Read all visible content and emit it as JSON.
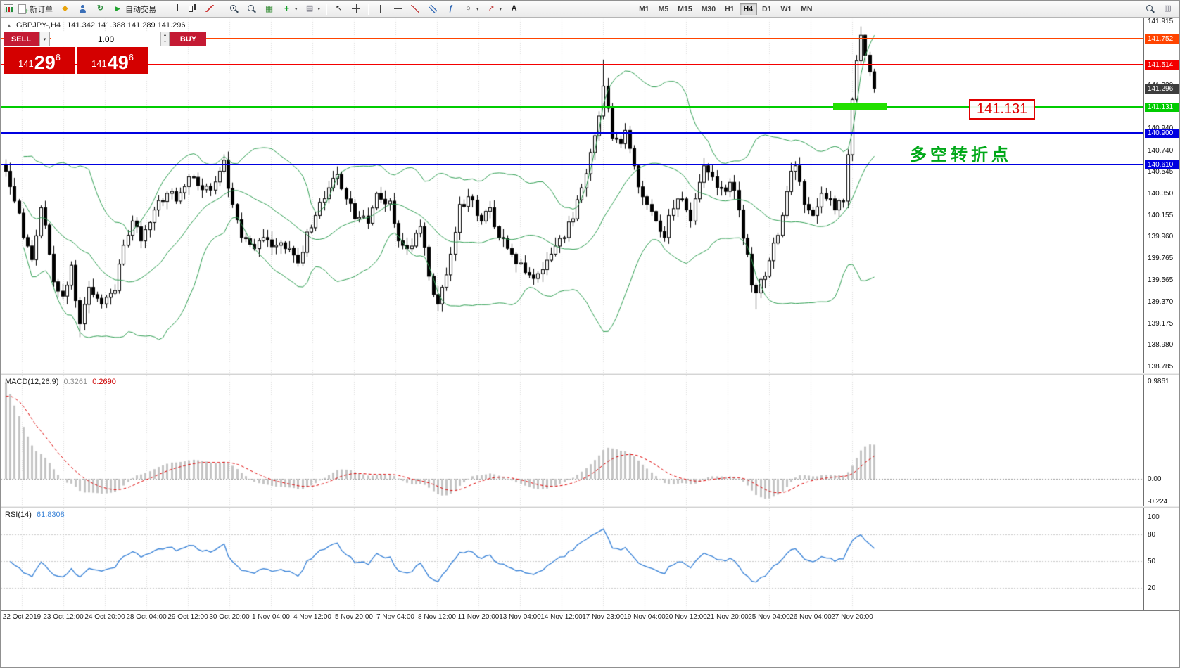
{
  "toolbar": {
    "new_order_label": "新订单",
    "autotrade_label": "自动交易",
    "timeframes": [
      "M1",
      "M5",
      "M15",
      "M30",
      "H1",
      "H4",
      "D1",
      "W1",
      "MN"
    ],
    "active_timeframe": "H4",
    "items": [
      {
        "t": "app",
        "name": "app-icon"
      },
      {
        "t": "btn",
        "name": "new-order-button",
        "icon": "neworder",
        "bind": "toolbar.new_order_label"
      },
      {
        "t": "btn",
        "name": "community-button",
        "icon": "diamond"
      },
      {
        "t": "btn",
        "name": "profile-button",
        "icon": "person"
      },
      {
        "t": "btn",
        "name": "refresh-button",
        "icon": "refresh"
      },
      {
        "t": "btn",
        "name": "autotrading-button",
        "icon": "play",
        "bind": "toolbar.autotrade_label"
      },
      {
        "t": "sep"
      },
      {
        "t": "btn",
        "name": "bar-chart-button",
        "icon": "ohlc"
      },
      {
        "t": "btn",
        "name": "candlestick-chart-button",
        "icon": "candles"
      },
      {
        "t": "btn",
        "name": "line-chart-button",
        "icon": "linechart"
      },
      {
        "t": "sep"
      },
      {
        "t": "btn",
        "name": "zoom-in-button",
        "icon": "zoomin"
      },
      {
        "t": "btn",
        "name": "zoom-out-button",
        "icon": "zoomout"
      },
      {
        "t": "btn",
        "name": "tile-windows-button",
        "icon": "grid"
      },
      {
        "t": "btn",
        "name": "indicators-button",
        "icon": "indicators",
        "dd": true
      },
      {
        "t": "btn",
        "name": "templates-button",
        "icon": "templates",
        "dd": true
      },
      {
        "t": "sep"
      },
      {
        "t": "btn",
        "name": "cursor-button",
        "icon": "cursor"
      },
      {
        "t": "btn",
        "name": "crosshair-button",
        "icon": "crosshair"
      },
      {
        "t": "sep"
      },
      {
        "t": "btn",
        "name": "vertical-line-button",
        "icon": "vlinetool"
      },
      {
        "t": "btn",
        "name": "horizontal-line-button",
        "icon": "hlinetool"
      },
      {
        "t": "btn",
        "name": "trendline-button",
        "icon": "trend"
      },
      {
        "t": "btn",
        "name": "channel-button",
        "icon": "channel"
      },
      {
        "t": "btn",
        "name": "fibonacci-button",
        "icon": "fibo"
      },
      {
        "t": "btn",
        "name": "shapes-button",
        "icon": "shapes",
        "dd": true
      },
      {
        "t": "btn",
        "name": "arrows-button",
        "icon": "arrows",
        "dd": true
      },
      {
        "t": "btn",
        "name": "text-button",
        "icon": "text"
      },
      {
        "t": "sep"
      },
      {
        "t": "tfgroup"
      },
      {
        "t": "flex"
      },
      {
        "t": "btn",
        "name": "search-button",
        "icon": "zoom"
      },
      {
        "t": "btn",
        "name": "quick-nav-button",
        "icon": "templates2"
      }
    ]
  },
  "chart": {
    "header_symbol": "GBPJPY-,H4",
    "header_ohlc": "141.342 141.388 141.289 141.296"
  },
  "trade_panel": {
    "sell_label": "SELL",
    "buy_label": "BUY",
    "volume": "1.00",
    "sell_price": {
      "prefix": "141",
      "big": "29",
      "sup": "6"
    },
    "buy_price": {
      "prefix": "141",
      "big": "49",
      "sup": "6"
    }
  },
  "hlines": [
    {
      "price": 141.752,
      "label": "141.752",
      "color": "#ff4400"
    },
    {
      "price": 141.514,
      "label": "141.514",
      "color": "#f40000"
    },
    {
      "price": 141.131,
      "label": "141.131",
      "color": "#00cc00"
    },
    {
      "price": 140.9,
      "label": "140.900",
      "color": "#0000e0"
    },
    {
      "price": 140.61,
      "label": "140.610",
      "color": "#0000e0"
    }
  ],
  "current_price": {
    "price": 141.296,
    "label": "141.296",
    "color": "#3d3d3d"
  },
  "annotations": {
    "highlight_price": "141.131",
    "turning_point": "多空转折点"
  },
  "price_axis_labels": [
    "141.915",
    "141.720",
    "141.525",
    "141.330",
    "141.135",
    "140.940",
    "140.740",
    "140.545",
    "140.350",
    "140.155",
    "139.960",
    "139.765",
    "139.565",
    "139.370",
    "139.175",
    "138.980",
    "138.785"
  ],
  "macd": {
    "name": "MACD(12,26,9)",
    "value_main": "0.3261",
    "value_signal": "0.2690",
    "axis_labels": [
      "0.9861",
      "0.00",
      "-0.224"
    ]
  },
  "rsi": {
    "name": "RSI(14)",
    "value": "61.8308",
    "axis_labels": [
      "100",
      "80",
      "50",
      "20"
    ],
    "levels": [
      80,
      50,
      20
    ]
  },
  "time_axis": [
    "22 Oct 2019",
    "23 Oct 12:00",
    "24 Oct 20:00",
    "28 Oct 04:00",
    "29 Oct 12:00",
    "30 Oct 20:00",
    "1 Nov 04:00",
    "4 Nov 12:00",
    "5 Nov 20:00",
    "7 Nov 04:00",
    "8 Nov 12:00",
    "11 Nov 20:00",
    "13 Nov 04:00",
    "14 Nov 12:00",
    "17 Nov 23:00",
    "19 Nov 04:00",
    "20 Nov 12:00",
    "21 Nov 20:00",
    "25 Nov 04:00",
    "26 Nov 04:00",
    "27 Nov 20:00"
  ],
  "colors": {
    "bollinger": "#2f9e52",
    "macd_signal": "#dd0000",
    "macd_histogram": "#c4c4c4",
    "rsi_line": "#3d85d8",
    "trade_button_red": "#c41a33",
    "trade_price_red": "#d40000",
    "annotation_red": "#e00000",
    "annotation_green": "#00a818",
    "highlight_green": "#22e000",
    "grid": "#dcdcdc"
  },
  "chart_data": {
    "type": "candlestick",
    "symbol": "GBPJPY-",
    "timeframe": "H4",
    "ohlc_current": {
      "open": 141.342,
      "high": 141.388,
      "low": 141.289,
      "close": 141.296
    },
    "y_axis": {
      "min": 138.785,
      "max": 141.915
    },
    "candles_count": 200,
    "indicators": {
      "bollinger": {
        "period": 20,
        "deviation": 2
      },
      "macd": {
        "fast": 12,
        "slow": 26,
        "signal": 9,
        "main": 0.3261,
        "signal_value": 0.269
      },
      "rsi": {
        "period": 14,
        "value": 61.8308
      }
    },
    "price_waypoints": [
      [
        0,
        140.55
      ],
      [
        2,
        140.28
      ],
      [
        4,
        139.95
      ],
      [
        6,
        139.75
      ],
      [
        8,
        140.22
      ],
      [
        10,
        139.8
      ],
      [
        11,
        139.55
      ],
      [
        13,
        139.42
      ],
      [
        15,
        139.7
      ],
      [
        16,
        139.38
      ],
      [
        17,
        139.17
      ],
      [
        19,
        139.5
      ],
      [
        22,
        139.35
      ],
      [
        25,
        139.47
      ],
      [
        27,
        139.88
      ],
      [
        29,
        140.1
      ],
      [
        31,
        139.92
      ],
      [
        34,
        140.2
      ],
      [
        37,
        140.35
      ],
      [
        39,
        140.28
      ],
      [
        42,
        140.5
      ],
      [
        44,
        140.42
      ],
      [
        47,
        140.38
      ],
      [
        49,
        140.55
      ],
      [
        50,
        140.65
      ],
      [
        52,
        140.25
      ],
      [
        54,
        139.95
      ],
      [
        57,
        139.85
      ],
      [
        59,
        139.95
      ],
      [
        62,
        139.88
      ],
      [
        64,
        139.85
      ],
      [
        67,
        139.72
      ],
      [
        69,
        140.0
      ],
      [
        71,
        140.15
      ],
      [
        74,
        140.4
      ],
      [
        76,
        140.52
      ],
      [
        78,
        140.3
      ],
      [
        80,
        140.12
      ],
      [
        83,
        140.08
      ],
      [
        85,
        140.35
      ],
      [
        88,
        140.28
      ],
      [
        90,
        139.92
      ],
      [
        92,
        139.85
      ],
      [
        95,
        140.05
      ],
      [
        97,
        139.6
      ],
      [
        99,
        139.35
      ],
      [
        100,
        139.5
      ],
      [
        102,
        139.8
      ],
      [
        104,
        140.25
      ],
      [
        106,
        140.32
      ],
      [
        109,
        140.1
      ],
      [
        111,
        140.22
      ],
      [
        113,
        139.95
      ],
      [
        116,
        139.8
      ],
      [
        118,
        139.72
      ],
      [
        121,
        139.58
      ],
      [
        123,
        139.66
      ],
      [
        125,
        139.8
      ],
      [
        128,
        139.95
      ],
      [
        130,
        140.12
      ],
      [
        132,
        140.4
      ],
      [
        134,
        140.72
      ],
      [
        136,
        141.05
      ],
      [
        137,
        141.32
      ],
      [
        138,
        141.12
      ],
      [
        139,
        140.85
      ],
      [
        141,
        140.8
      ],
      [
        142,
        140.92
      ],
      [
        144,
        140.6
      ],
      [
        146,
        140.32
      ],
      [
        147,
        140.25
      ],
      [
        149,
        140.1
      ],
      [
        151,
        139.95
      ],
      [
        152,
        140.15
      ],
      [
        154,
        140.3
      ],
      [
        156,
        140.2
      ],
      [
        157,
        140.1
      ],
      [
        159,
        140.45
      ],
      [
        160,
        140.6
      ],
      [
        162,
        140.5
      ],
      [
        164,
        140.4
      ],
      [
        166,
        140.45
      ],
      [
        168,
        140.2
      ],
      [
        170,
        139.8
      ],
      [
        171,
        139.52
      ],
      [
        172,
        139.45
      ],
      [
        174,
        139.6
      ],
      [
        176,
        139.9
      ],
      [
        178,
        140.15
      ],
      [
        180,
        140.55
      ],
      [
        181,
        140.6
      ],
      [
        183,
        140.25
      ],
      [
        185,
        140.15
      ],
      [
        187,
        140.35
      ],
      [
        189,
        140.3
      ],
      [
        190,
        140.2
      ],
      [
        192,
        140.28
      ],
      [
        193,
        140.7
      ],
      [
        194,
        141.2
      ],
      [
        195,
        141.55
      ],
      [
        196,
        141.78
      ],
      [
        197,
        141.6
      ],
      [
        198,
        141.45
      ],
      [
        199,
        141.3
      ]
    ],
    "spikes": [
      {
        "i": 17,
        "low": 139.05
      },
      {
        "i": 137,
        "high": 141.56
      },
      {
        "i": 172,
        "low": 139.3
      },
      {
        "i": 196,
        "high": 141.86
      }
    ]
  }
}
